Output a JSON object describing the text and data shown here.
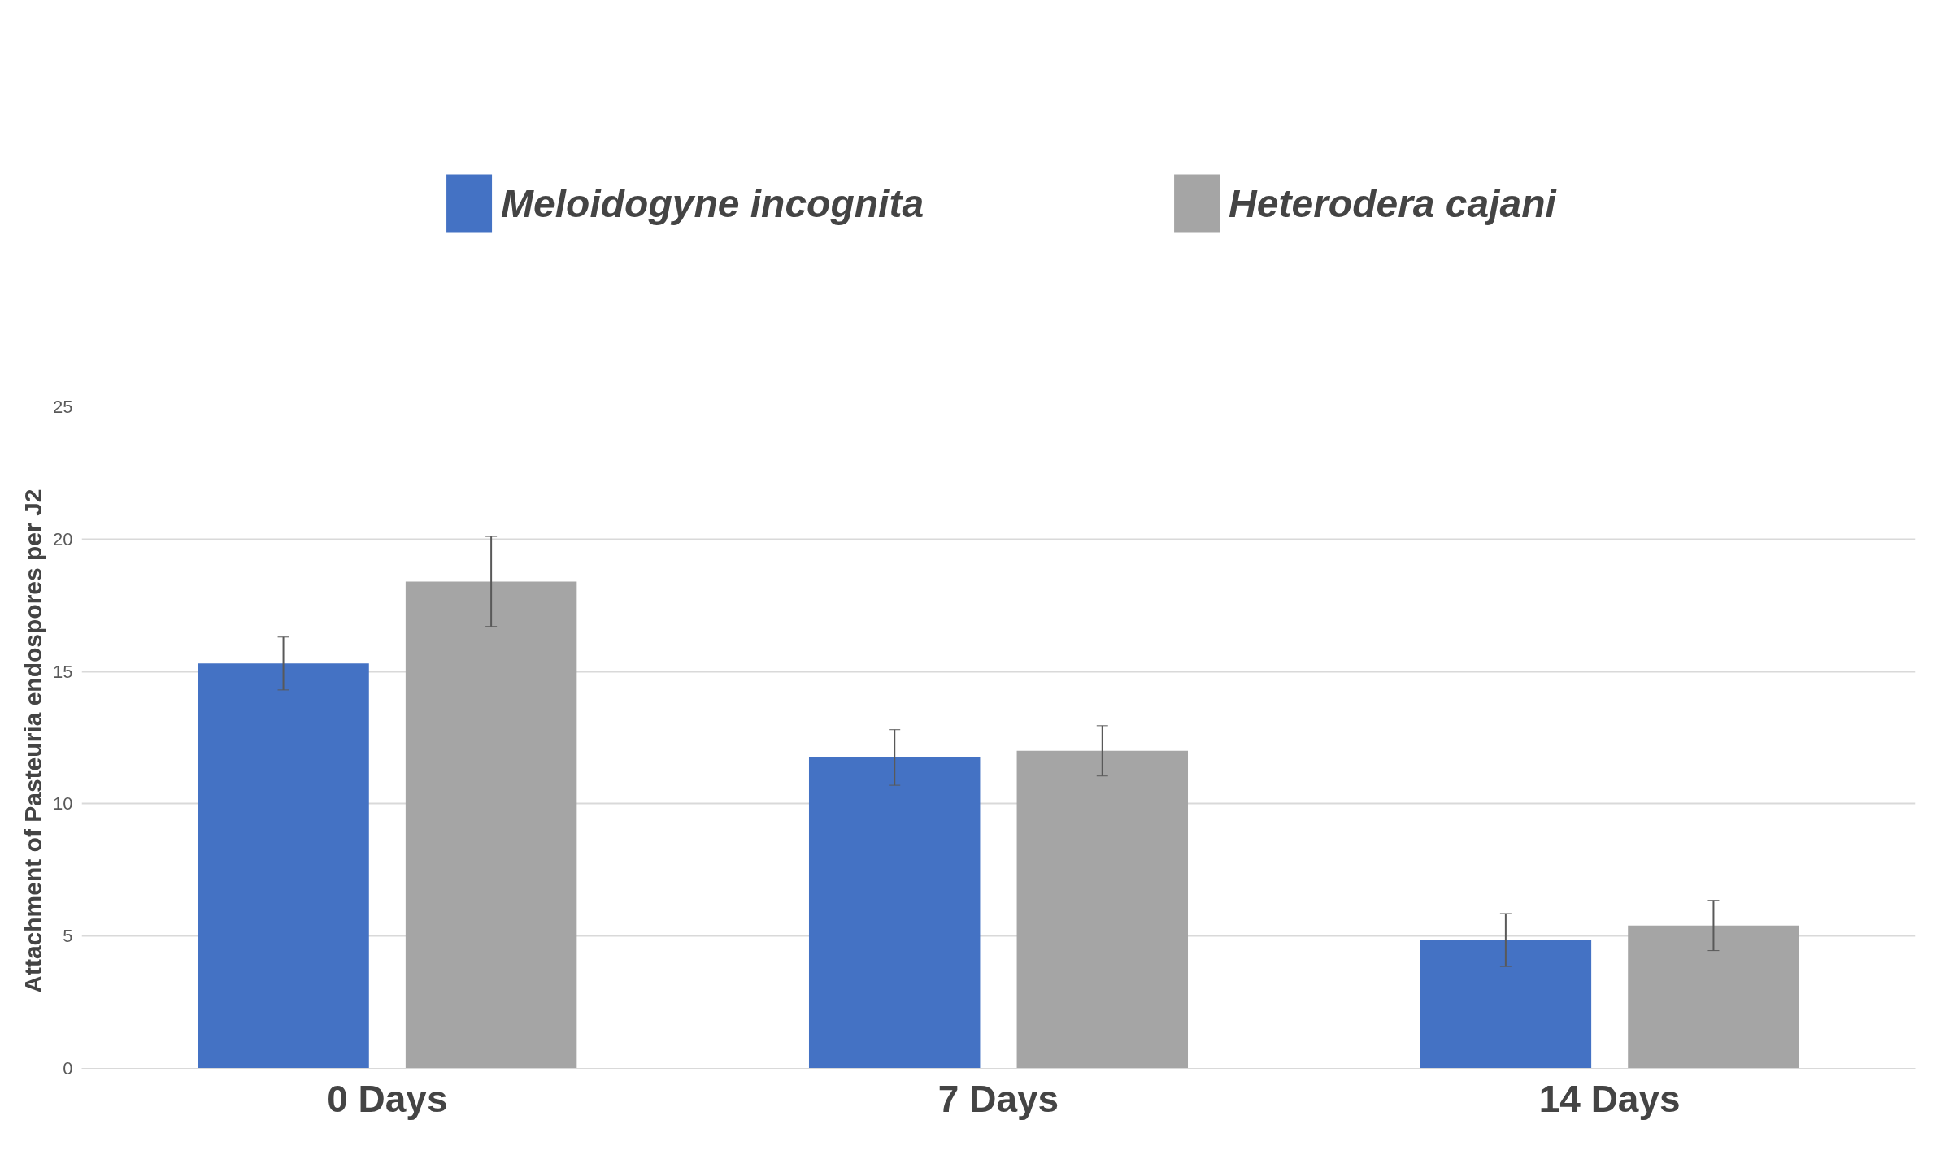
{
  "chart_data": {
    "type": "bar",
    "categories": [
      "0 Days",
      "7 Days",
      "14 Days"
    ],
    "ylabel": "Attachment of Pasteuria endospores per  J2",
    "ylim": [
      0,
      25
    ],
    "yticks": [
      0,
      5,
      10,
      15,
      20,
      25
    ],
    "grid": "y",
    "legend": "top",
    "series": [
      {
        "name": "Meloidogyne incognita",
        "color": "#4472c4",
        "values": [
          15.3,
          11.75,
          4.85
        ],
        "errors": [
          1.0,
          1.05,
          1.0
        ]
      },
      {
        "name": "Heterodera cajani",
        "color": "#a5a5a5",
        "values": [
          18.4,
          12.0,
          5.4
        ],
        "errors": [
          1.7,
          0.95,
          0.95
        ]
      }
    ]
  }
}
